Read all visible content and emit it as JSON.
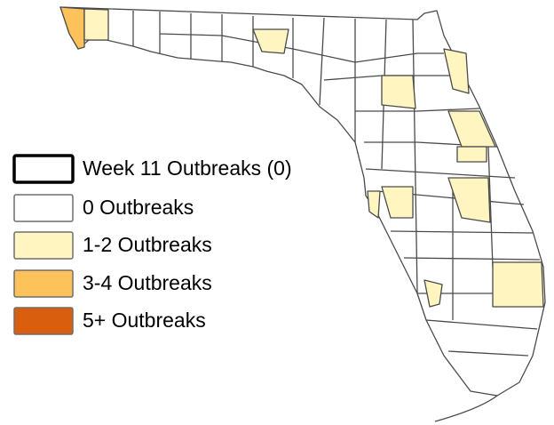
{
  "legend": [
    {
      "label": "Week 11 Outbreaks (0)",
      "color": "#ffffff",
      "border": "#000000"
    },
    {
      "label": "0 Outbreaks",
      "color": "#ffffff",
      "border": "#6e6e6e"
    },
    {
      "label": "1-2 Outbreaks",
      "color": "#fff5c0",
      "border": "#6e6e6e"
    },
    {
      "label": "3-4 Outbreaks",
      "color": "#fdc35a",
      "border": "#6e6e6e"
    },
    {
      "label": "5+ Outbreaks",
      "color": "#d95f0e",
      "border": "#6e6e6e"
    }
  ]
}
